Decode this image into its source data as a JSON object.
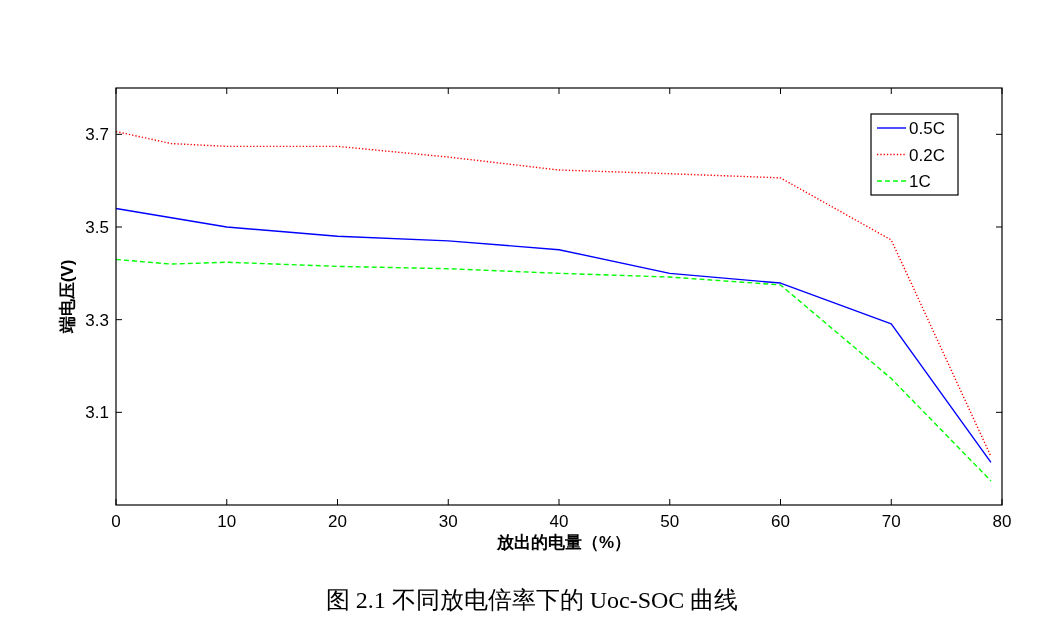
{
  "chart_data": {
    "type": "line",
    "xlabel": "放出的电量（%）",
    "ylabel": "端电压(V)",
    "annotations": [
      "图 2.1 不同放电倍率下的 Uoc-SOC 曲线"
    ],
    "xlim": [
      0,
      80
    ],
    "ylim": [
      2.9,
      3.8
    ],
    "xticks": [
      0,
      10,
      20,
      30,
      40,
      50,
      60,
      70,
      80
    ],
    "yticks": [
      3.1,
      3.3,
      3.5,
      3.7
    ],
    "legend": "top right",
    "series": [
      {
        "name": "0.5C",
        "color": "#0000ff",
        "line_style": "solid",
        "x": [
          0,
          10,
          20,
          30,
          40,
          50,
          60,
          70,
          79
        ],
        "values": [
          3.54,
          3.5,
          3.48,
          3.47,
          3.451,
          3.4,
          3.379,
          3.291,
          2.992
        ]
      },
      {
        "name": "0.2C",
        "color": "#ff0000",
        "line_style": "dotted",
        "x": [
          0,
          5,
          10,
          20,
          30,
          40,
          50,
          60,
          70,
          79
        ],
        "values": [
          3.706,
          3.68,
          3.674,
          3.674,
          3.651,
          3.623,
          3.615,
          3.606,
          3.472,
          3.005
        ]
      },
      {
        "name": "1C",
        "color": "#00ff00",
        "line_style": "dashed",
        "x": [
          0,
          5,
          10,
          20,
          30,
          40,
          50,
          60,
          70,
          79
        ],
        "values": [
          3.43,
          3.42,
          3.424,
          3.415,
          3.41,
          3.4,
          3.392,
          3.375,
          3.173,
          2.952
        ]
      }
    ]
  }
}
